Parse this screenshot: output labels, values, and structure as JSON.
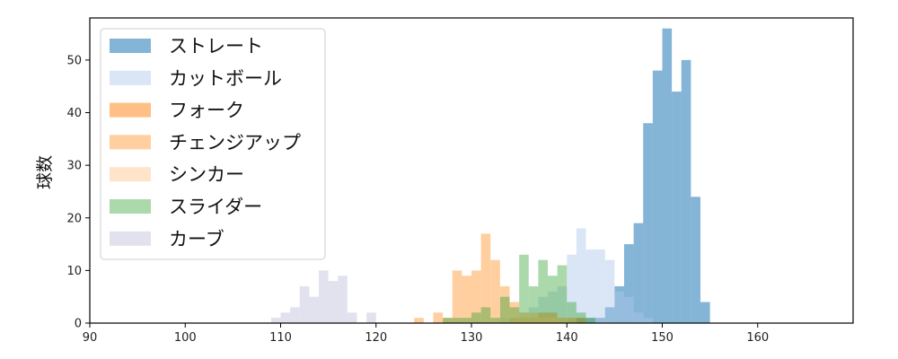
{
  "chart_data": {
    "type": "bar",
    "subtype": "overlapping-histogram",
    "ylabel": "球数",
    "xlim": [
      90,
      170
    ],
    "ylim": [
      0,
      58
    ],
    "xticks": [
      90,
      100,
      110,
      120,
      130,
      140,
      150,
      160
    ],
    "yticks": [
      0,
      10,
      20,
      30,
      40,
      50
    ],
    "bin_width": 1,
    "grid": false,
    "legend_position": "top-left",
    "series": [
      {
        "name": "ストレート",
        "color": "#1f77b4",
        "opacity": 0.55,
        "bins": [
          {
            "x": 141,
            "y": 1
          },
          {
            "x": 142,
            "y": 1
          },
          {
            "x": 143,
            "y": 1
          },
          {
            "x": 144,
            "y": 3
          },
          {
            "x": 145,
            "y": 7
          },
          {
            "x": 146,
            "y": 15
          },
          {
            "x": 147,
            "y": 19
          },
          {
            "x": 148,
            "y": 38
          },
          {
            "x": 149,
            "y": 48
          },
          {
            "x": 150,
            "y": 56
          },
          {
            "x": 151,
            "y": 44
          },
          {
            "x": 152,
            "y": 50
          },
          {
            "x": 153,
            "y": 24
          },
          {
            "x": 154,
            "y": 4
          }
        ]
      },
      {
        "name": "カットボール",
        "color": "#aec7e8",
        "opacity": 0.45,
        "bins": [
          {
            "x": 133,
            "y": 1
          },
          {
            "x": 134,
            "y": 1
          },
          {
            "x": 135,
            "y": 2
          },
          {
            "x": 136,
            "y": 3
          },
          {
            "x": 137,
            "y": 5
          },
          {
            "x": 138,
            "y": 6
          },
          {
            "x": 139,
            "y": 7
          },
          {
            "x": 140,
            "y": 13
          },
          {
            "x": 141,
            "y": 18
          },
          {
            "x": 142,
            "y": 14
          },
          {
            "x": 143,
            "y": 14
          },
          {
            "x": 144,
            "y": 12
          },
          {
            "x": 145,
            "y": 6
          },
          {
            "x": 146,
            "y": 5
          },
          {
            "x": 147,
            "y": 2
          },
          {
            "x": 148,
            "y": 1
          }
        ]
      },
      {
        "name": "フォーク",
        "color": "#ff7f0e",
        "opacity": 0.5,
        "bins": [
          {
            "x": 134,
            "y": 1
          },
          {
            "x": 135,
            "y": 1
          },
          {
            "x": 136,
            "y": 1
          },
          {
            "x": 137,
            "y": 2
          },
          {
            "x": 138,
            "y": 2
          },
          {
            "x": 139,
            "y": 1
          },
          {
            "x": 140,
            "y": 1
          },
          {
            "x": 141,
            "y": 1
          }
        ]
      },
      {
        "name": "チェンジアップ",
        "color": "#ffbb78",
        "opacity": 0.7,
        "bins": [
          {
            "x": 124,
            "y": 1
          },
          {
            "x": 126,
            "y": 2
          },
          {
            "x": 127,
            "y": 1
          },
          {
            "x": 128,
            "y": 10
          },
          {
            "x": 129,
            "y": 9
          },
          {
            "x": 130,
            "y": 10
          },
          {
            "x": 131,
            "y": 17
          },
          {
            "x": 132,
            "y": 12
          },
          {
            "x": 133,
            "y": 7
          },
          {
            "x": 134,
            "y": 4
          },
          {
            "x": 135,
            "y": 2
          },
          {
            "x": 136,
            "y": 2
          },
          {
            "x": 137,
            "y": 1
          },
          {
            "x": 138,
            "y": 1
          },
          {
            "x": 139,
            "y": 1
          }
        ]
      },
      {
        "name": "シンカー",
        "color": "#ffbb78",
        "opacity": 0.4,
        "bins": [
          {
            "x": 136,
            "y": 1
          },
          {
            "x": 138,
            "y": 1
          }
        ]
      },
      {
        "name": "スライダー",
        "color": "#2ca02c",
        "opacity": 0.4,
        "bins": [
          {
            "x": 127,
            "y": 1
          },
          {
            "x": 128,
            "y": 1
          },
          {
            "x": 129,
            "y": 1
          },
          {
            "x": 130,
            "y": 2
          },
          {
            "x": 131,
            "y": 3
          },
          {
            "x": 132,
            "y": 1
          },
          {
            "x": 133,
            "y": 5
          },
          {
            "x": 134,
            "y": 3
          },
          {
            "x": 135,
            "y": 13
          },
          {
            "x": 136,
            "y": 7
          },
          {
            "x": 137,
            "y": 12
          },
          {
            "x": 138,
            "y": 9
          },
          {
            "x": 139,
            "y": 11
          },
          {
            "x": 140,
            "y": 4
          },
          {
            "x": 141,
            "y": 2
          },
          {
            "x": 142,
            "y": 1
          }
        ]
      },
      {
        "name": "カーブ",
        "color": "#c5c5e0",
        "opacity": 0.5,
        "bins": [
          {
            "x": 109,
            "y": 1
          },
          {
            "x": 110,
            "y": 2
          },
          {
            "x": 111,
            "y": 3
          },
          {
            "x": 112,
            "y": 7
          },
          {
            "x": 113,
            "y": 5
          },
          {
            "x": 114,
            "y": 10
          },
          {
            "x": 115,
            "y": 8
          },
          {
            "x": 116,
            "y": 9
          },
          {
            "x": 117,
            "y": 2
          },
          {
            "x": 119,
            "y": 2
          }
        ]
      }
    ]
  }
}
